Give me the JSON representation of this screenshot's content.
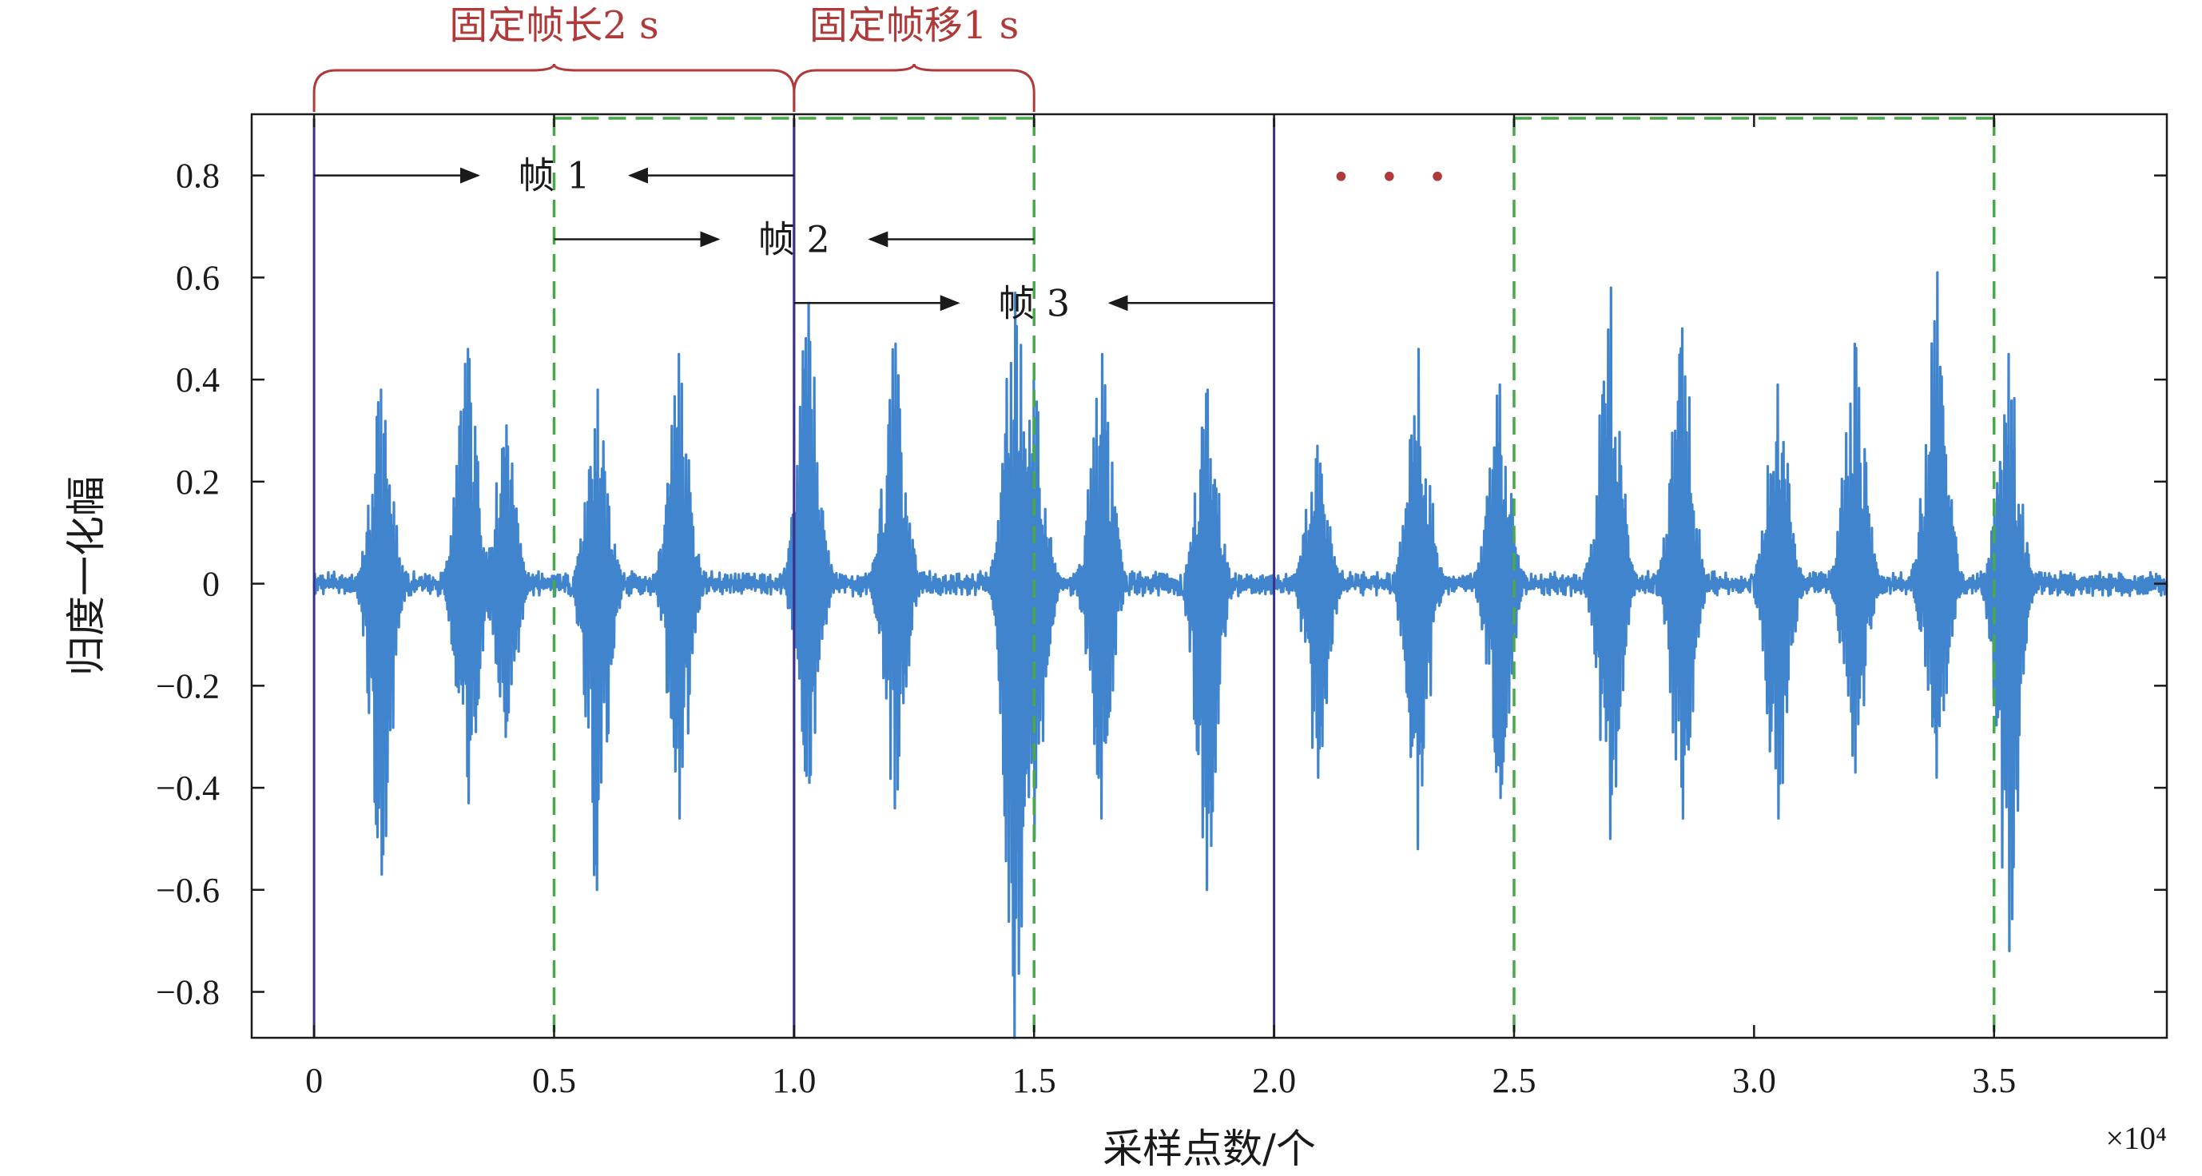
{
  "chart_data": {
    "type": "line",
    "xlabel": "采样点数/个",
    "ylabel": "归度一化幅",
    "x_multiplier_label": "×10⁴",
    "xlim": [
      -0.13,
      3.86
    ],
    "ylim": [
      -0.89,
      0.92
    ],
    "xticks": [
      0,
      0.5,
      1.0,
      1.5,
      2.0,
      2.5,
      3.0,
      3.5
    ],
    "xtick_labels": [
      "0",
      "0.5",
      "1.0",
      "1.5",
      "2.0",
      "2.5",
      "3.0",
      "3.5"
    ],
    "yticks": [
      0.8,
      0.6,
      0.4,
      0.2,
      0,
      -0.2,
      -0.4,
      -0.6,
      -0.8
    ],
    "ytick_labels": [
      "0.8",
      "0.6",
      "0.4",
      "0.2",
      "0",
      "−0.2",
      "−0.4",
      "−0.6",
      "−0.8"
    ],
    "grid": false,
    "series": [
      {
        "color": "#3f84cc",
        "values_description_note": "",
        "bursts": [
          {
            "x": 0.14,
            "max": 0.38,
            "min": -0.57
          },
          {
            "x": 0.32,
            "max": 0.46,
            "min": -0.43
          },
          {
            "x": 0.4,
            "max": 0.31,
            "min": -0.3
          },
          {
            "x": 0.59,
            "max": 0.38,
            "min": -0.6
          },
          {
            "x": 0.76,
            "max": 0.45,
            "min": -0.46
          },
          {
            "x": 1.03,
            "max": 0.55,
            "min": -0.39
          },
          {
            "x": 1.21,
            "max": 0.47,
            "min": -0.44
          },
          {
            "x": 1.46,
            "max": 0.57,
            "min": -0.89
          },
          {
            "x": 1.5,
            "max": 0.4,
            "min": -0.5
          },
          {
            "x": 1.64,
            "max": 0.45,
            "min": -0.46
          },
          {
            "x": 1.86,
            "max": 0.38,
            "min": -0.6
          },
          {
            "x": 2.09,
            "max": 0.27,
            "min": -0.38
          },
          {
            "x": 2.3,
            "max": 0.46,
            "min": -0.52
          },
          {
            "x": 2.47,
            "max": 0.39,
            "min": -0.42
          },
          {
            "x": 2.7,
            "max": 0.58,
            "min": -0.5
          },
          {
            "x": 2.85,
            "max": 0.5,
            "min": -0.46
          },
          {
            "x": 3.05,
            "max": 0.39,
            "min": -0.46
          },
          {
            "x": 3.21,
            "max": 0.47,
            "min": -0.37
          },
          {
            "x": 3.38,
            "max": 0.61,
            "min": -0.38
          },
          {
            "x": 3.53,
            "max": 0.45,
            "min": -0.72
          }
        ]
      }
    ],
    "frame_windows": {
      "solid": [
        [
          0,
          1.0
        ],
        [
          1.0,
          2.0
        ]
      ],
      "dashed": [
        [
          0.5,
          1.5
        ],
        [
          2.5,
          3.5
        ]
      ],
      "solid_color": "#3b2e8c",
      "dashed_color": "#4aa84a"
    },
    "annotations": {
      "frame_length": "固定帧长2 s",
      "frame_shift": "固定帧移1 s",
      "frames": [
        {
          "label": "帧 1",
          "y": 0.8,
          "from": 0,
          "to": 1.0
        },
        {
          "label": "帧 2",
          "y": 0.675,
          "from": 0.5,
          "to": 1.5
        },
        {
          "label": "帧 3",
          "y": 0.55,
          "from": 1.0,
          "to": 2.0
        }
      ],
      "ellipsis": "• • •",
      "ellipsis_color": "#b03a3a",
      "brace_color": "#b03a3a"
    }
  }
}
